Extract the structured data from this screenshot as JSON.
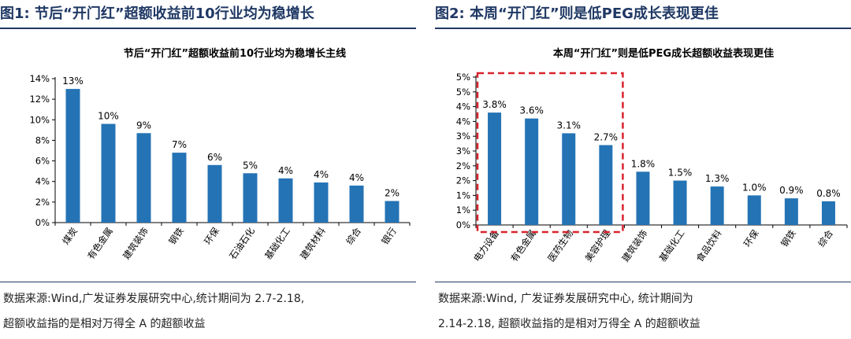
{
  "colors": {
    "bar": "#2473b5",
    "heading": "#1f3864",
    "highlight_box": "#d9232d"
  },
  "left": {
    "fig_title": "图1:  节后“开门红”超额收益前10行业均为稳增长",
    "source_line1": "数据来源:Wind,广发证券发展研究中心,统计期间为 2.7-2.18,",
    "source_line2": "超额收益指的是相对万得全 A 的超额收益"
  },
  "right": {
    "fig_title": "图2:  本周“开门红”则是低PEG成长表现更佳",
    "source_line1": "数据来源:Wind, 广发证券发展研究中心, 统计期间为",
    "source_line2": "2.14-2.18, 超额收益指的是相对万得全 A 的超额收益"
  },
  "chart_data": [
    {
      "type": "bar",
      "title": "节后“开门红”超额收益前10行业均为稳增长主线",
      "categories": [
        "煤炭",
        "有色金属",
        "建筑装饰",
        "钢铁",
        "环保",
        "石油石化",
        "基础化工",
        "建筑材料",
        "综合",
        "银行"
      ],
      "values": [
        13.0,
        9.6,
        8.7,
        6.8,
        5.6,
        4.8,
        4.3,
        3.9,
        3.6,
        2.1
      ],
      "data_labels": [
        "13%",
        "10%",
        "9%",
        "7%",
        "6%",
        "5%",
        "4%",
        "4%",
        "4%",
        "2%"
      ],
      "ylim": [
        0,
        14
      ],
      "yticks": [
        0,
        2,
        4,
        6,
        8,
        10,
        12,
        14
      ],
      "ytick_labels": [
        "0%",
        "2%",
        "4%",
        "6%",
        "8%",
        "10%",
        "12%",
        "14%"
      ],
      "xlabel": "",
      "ylabel": "",
      "grid": false
    },
    {
      "type": "bar",
      "title": "本周“开门红”则是低PEG成长超额收益表现更佳",
      "categories": [
        "电力设备",
        "有色金属",
        "医药生物",
        "美容护理",
        "建筑装饰",
        "基础化工",
        "食品饮料",
        "环保",
        "钢铁",
        "综合"
      ],
      "values": [
        3.8,
        3.6,
        3.1,
        2.7,
        1.8,
        1.5,
        1.3,
        1.0,
        0.9,
        0.8
      ],
      "data_labels": [
        "3.8%",
        "3.6%",
        "3.1%",
        "2.7%",
        "1.8%",
        "1.5%",
        "1.3%",
        "1.0%",
        "0.9%",
        "0.8%"
      ],
      "ylim": [
        0,
        5
      ],
      "yticks": [
        0,
        0.5,
        1,
        1.5,
        2,
        2.5,
        3,
        3.5,
        4,
        4.5,
        5
      ],
      "ytick_labels": [
        "0%",
        "1%",
        "1%",
        "2%",
        "2%",
        "3%",
        "3%",
        "4%",
        "4%",
        "5%",
        "5%"
      ],
      "highlight_first_n": 4,
      "xlabel": "",
      "ylabel": "",
      "grid": false
    }
  ]
}
